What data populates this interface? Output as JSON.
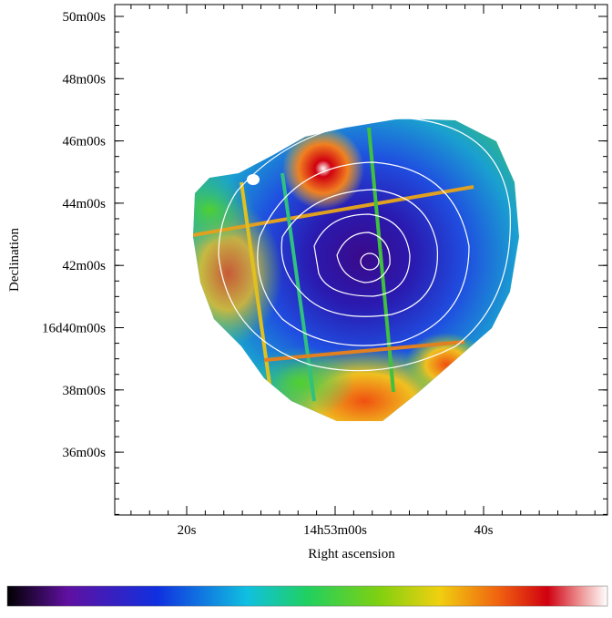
{
  "axes": {
    "y_label": "Declination",
    "x_label": "Right ascension",
    "y_ticks": [
      "50m00s",
      "48m00s",
      "46m00s",
      "44m00s",
      "42m00s",
      "16d40m00s",
      "38m00s",
      "36m00s"
    ],
    "x_ticks": [
      "20s",
      "14h53m00s",
      "40s"
    ]
  }
}
